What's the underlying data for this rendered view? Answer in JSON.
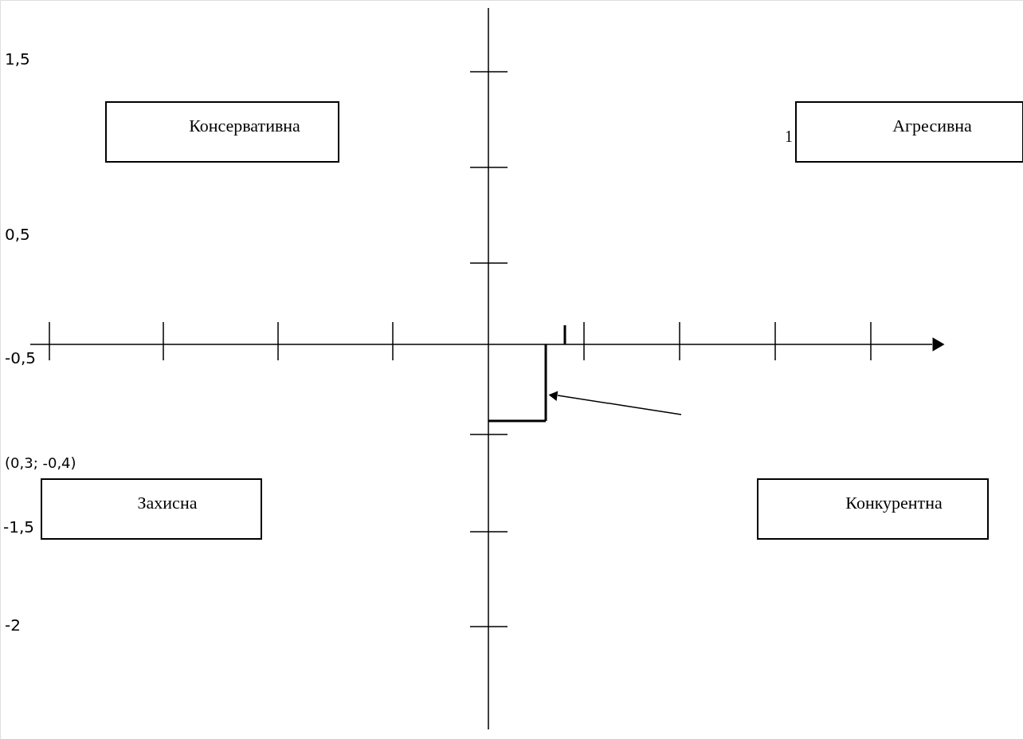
{
  "chart_data": {
    "type": "other",
    "categories": [
      null
    ],
    "values": [
      -0.4
    ],
    "value_labels": [
      "(0,3; -0,4)"
    ],
    "annotations": [
      "Консервативна",
      "Агресивна",
      "Захисна",
      "Конкурентна",
      null,
      "1,5",
      "1",
      "0,5",
      "-0,5",
      "-1,5",
      "-2"
    ]
  }
}
